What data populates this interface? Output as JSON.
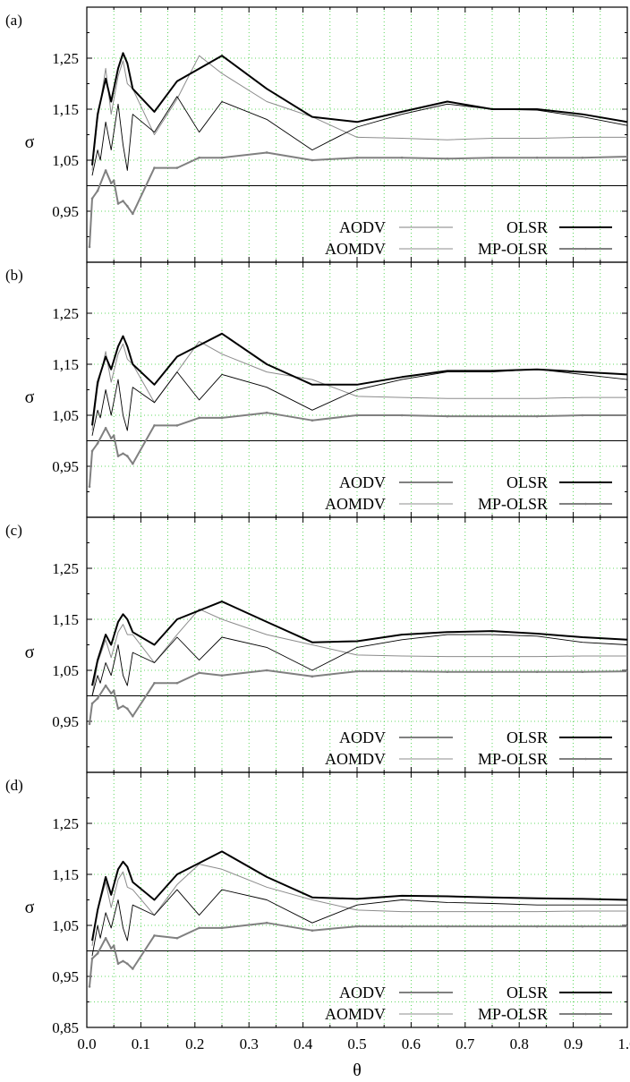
{
  "figure": {
    "ylabel": "σ",
    "xlabel": "θ",
    "x_ticks": [
      "0.0",
      "0.1",
      "0.2",
      "0.3",
      "0.4",
      "0.5",
      "0.6",
      "0.7",
      "0.8",
      "0.9",
      "1.0"
    ],
    "y_ticks": [
      "0.85",
      "0.95",
      "1.05",
      "1.15",
      "1.25"
    ],
    "legend": {
      "aodv": "AODV",
      "aomdv": "AOMDV",
      "olsr": "OLSR",
      "mpolsr": "MP-OLSR"
    },
    "colors": {
      "olsr": "#000000",
      "aodv": "#000000",
      "aomdv": "#8c8c8c",
      "mpolsr": "#808080",
      "grid": "#33cc33",
      "reference_line": "#000000"
    }
  },
  "chart_data": [
    {
      "type": "line",
      "panel": "(a)",
      "xlim": [
        0,
        1.0
      ],
      "ylim": [
        0.85,
        1.35
      ],
      "grid": true,
      "reference_y": 1.0,
      "legend_position": "bottom-right",
      "series": [
        {
          "name": "OLSR",
          "x": [
            0.01,
            0.02,
            0.035,
            0.045,
            0.058,
            0.067,
            0.075,
            0.085,
            0.125,
            0.167,
            0.25,
            0.333,
            0.417,
            0.5,
            0.583,
            0.667,
            0.75,
            0.833,
            0.917,
            1.0
          ],
          "y": [
            1.04,
            1.14,
            1.21,
            1.165,
            1.23,
            1.26,
            1.24,
            1.19,
            1.145,
            1.205,
            1.255,
            1.19,
            1.135,
            1.125,
            1.145,
            1.165,
            1.15,
            1.15,
            1.14,
            1.125
          ]
        },
        {
          "name": "AODV",
          "x": [
            0.01,
            0.02,
            0.025,
            0.035,
            0.045,
            0.058,
            0.067,
            0.075,
            0.085,
            0.125,
            0.167,
            0.208,
            0.25,
            0.333,
            0.417,
            0.5,
            0.583,
            0.667,
            0.75,
            0.833,
            0.917,
            1.0
          ],
          "y": [
            1.02,
            1.07,
            1.05,
            1.125,
            1.07,
            1.16,
            1.08,
            1.03,
            1.14,
            1.105,
            1.175,
            1.105,
            1.165,
            1.13,
            1.07,
            1.115,
            1.14,
            1.16,
            1.15,
            1.148,
            1.135,
            1.118
          ]
        },
        {
          "name": "AOMDV",
          "x": [
            0.01,
            0.02,
            0.035,
            0.045,
            0.058,
            0.067,
            0.075,
            0.085,
            0.125,
            0.167,
            0.208,
            0.25,
            0.333,
            0.417,
            0.5,
            0.583,
            0.667,
            0.75,
            0.833,
            0.917,
            1.0
          ],
          "y": [
            1.03,
            1.13,
            1.23,
            1.14,
            1.215,
            1.245,
            1.2,
            1.19,
            1.1,
            1.17,
            1.255,
            1.22,
            1.165,
            1.135,
            1.095,
            1.093,
            1.09,
            1.093,
            1.093,
            1.095,
            1.095
          ]
        },
        {
          "name": "MP-OLSR",
          "x": [
            0.005,
            0.01,
            0.02,
            0.035,
            0.045,
            0.05,
            0.058,
            0.067,
            0.075,
            0.085,
            0.125,
            0.167,
            0.208,
            0.25,
            0.333,
            0.417,
            0.5,
            0.583,
            0.667,
            0.75,
            0.833,
            0.917,
            1.0
          ],
          "y": [
            0.88,
            0.975,
            0.99,
            1.03,
            1.005,
            1.01,
            0.965,
            0.97,
            0.96,
            0.945,
            1.035,
            1.035,
            1.055,
            1.055,
            1.065,
            1.05,
            1.055,
            1.055,
            1.053,
            1.055,
            1.055,
            1.055,
            1.057
          ]
        }
      ]
    },
    {
      "type": "line",
      "panel": "(b)",
      "xlim": [
        0,
        1.0
      ],
      "ylim": [
        0.85,
        1.35
      ],
      "grid": true,
      "reference_y": 1.0,
      "legend_position": "bottom-right",
      "series": [
        {
          "name": "OLSR",
          "x": [
            0.01,
            0.02,
            0.035,
            0.045,
            0.058,
            0.067,
            0.075,
            0.085,
            0.125,
            0.167,
            0.25,
            0.333,
            0.417,
            0.5,
            0.583,
            0.667,
            0.75,
            0.833,
            0.917,
            1.0
          ],
          "y": [
            1.03,
            1.115,
            1.165,
            1.14,
            1.185,
            1.205,
            1.185,
            1.15,
            1.11,
            1.165,
            1.21,
            1.15,
            1.11,
            1.11,
            1.125,
            1.137,
            1.137,
            1.14,
            1.135,
            1.13
          ]
        },
        {
          "name": "AODV",
          "x": [
            0.01,
            0.02,
            0.025,
            0.035,
            0.045,
            0.058,
            0.067,
            0.075,
            0.085,
            0.125,
            0.167,
            0.208,
            0.25,
            0.333,
            0.417,
            0.5,
            0.583,
            0.667,
            0.75,
            0.833,
            0.917,
            1.0
          ],
          "y": [
            1.01,
            1.06,
            1.045,
            1.1,
            1.05,
            1.12,
            1.05,
            1.02,
            1.105,
            1.075,
            1.135,
            1.08,
            1.13,
            1.105,
            1.06,
            1.1,
            1.12,
            1.135,
            1.135,
            1.14,
            1.13,
            1.12
          ]
        },
        {
          "name": "AOMDV",
          "x": [
            0.01,
            0.02,
            0.035,
            0.045,
            0.058,
            0.067,
            0.075,
            0.085,
            0.125,
            0.167,
            0.208,
            0.25,
            0.333,
            0.417,
            0.5,
            0.583,
            0.667,
            0.75,
            0.833,
            0.917,
            1.0
          ],
          "y": [
            1.02,
            1.105,
            1.175,
            1.115,
            1.17,
            1.19,
            1.16,
            1.15,
            1.075,
            1.135,
            1.195,
            1.17,
            1.135,
            1.12,
            1.087,
            1.085,
            1.083,
            1.083,
            1.083,
            1.085,
            1.085
          ]
        },
        {
          "name": "MP-OLSR",
          "x": [
            0.005,
            0.01,
            0.02,
            0.035,
            0.045,
            0.05,
            0.058,
            0.067,
            0.075,
            0.085,
            0.125,
            0.167,
            0.208,
            0.25,
            0.333,
            0.417,
            0.5,
            0.583,
            0.667,
            0.75,
            0.833,
            0.917,
            1.0
          ],
          "y": [
            0.91,
            0.98,
            0.995,
            1.025,
            1.005,
            1.01,
            0.97,
            0.975,
            0.97,
            0.955,
            1.03,
            1.03,
            1.045,
            1.045,
            1.055,
            1.04,
            1.05,
            1.05,
            1.048,
            1.048,
            1.048,
            1.05,
            1.05
          ]
        }
      ]
    },
    {
      "type": "line",
      "panel": "(c)",
      "xlim": [
        0,
        1.0
      ],
      "ylim": [
        0.85,
        1.35
      ],
      "grid": true,
      "reference_y": 1.0,
      "legend_position": "bottom-right",
      "series": [
        {
          "name": "OLSR",
          "x": [
            0.01,
            0.02,
            0.035,
            0.045,
            0.058,
            0.067,
            0.075,
            0.085,
            0.125,
            0.167,
            0.25,
            0.333,
            0.417,
            0.5,
            0.583,
            0.667,
            0.75,
            0.833,
            0.917,
            1.0
          ],
          "y": [
            1.02,
            1.07,
            1.12,
            1.1,
            1.145,
            1.16,
            1.15,
            1.125,
            1.1,
            1.15,
            1.185,
            1.145,
            1.105,
            1.107,
            1.12,
            1.125,
            1.127,
            1.122,
            1.115,
            1.11
          ]
        },
        {
          "name": "AODV",
          "x": [
            0.01,
            0.02,
            0.025,
            0.035,
            0.045,
            0.058,
            0.067,
            0.075,
            0.085,
            0.125,
            0.167,
            0.208,
            0.25,
            0.333,
            0.417,
            0.5,
            0.583,
            0.667,
            0.75,
            0.833,
            0.917,
            1.0
          ],
          "y": [
            1.0,
            1.04,
            1.025,
            1.065,
            1.04,
            1.1,
            1.04,
            1.02,
            1.085,
            1.065,
            1.115,
            1.07,
            1.115,
            1.095,
            1.05,
            1.095,
            1.11,
            1.12,
            1.12,
            1.117,
            1.105,
            1.1
          ]
        },
        {
          "name": "AOMDV",
          "x": [
            0.01,
            0.02,
            0.035,
            0.045,
            0.058,
            0.067,
            0.075,
            0.085,
            0.125,
            0.167,
            0.208,
            0.25,
            0.333,
            0.417,
            0.5,
            0.583,
            0.667,
            0.75,
            0.833,
            0.917,
            1.0
          ],
          "y": [
            1.0,
            1.065,
            1.11,
            1.075,
            1.125,
            1.14,
            1.12,
            1.12,
            1.065,
            1.12,
            1.17,
            1.15,
            1.12,
            1.1,
            1.08,
            1.078,
            1.077,
            1.077,
            1.077,
            1.078,
            1.078
          ]
        },
        {
          "name": "MP-OLSR",
          "x": [
            0.005,
            0.01,
            0.02,
            0.035,
            0.045,
            0.05,
            0.058,
            0.067,
            0.075,
            0.085,
            0.125,
            0.167,
            0.208,
            0.25,
            0.333,
            0.417,
            0.5,
            0.583,
            0.667,
            0.75,
            0.833,
            0.917,
            1.0
          ],
          "y": [
            0.945,
            0.985,
            0.995,
            1.02,
            1.005,
            1.01,
            0.975,
            0.98,
            0.975,
            0.96,
            1.025,
            1.025,
            1.045,
            1.04,
            1.05,
            1.038,
            1.048,
            1.048,
            1.047,
            1.047,
            1.047,
            1.047,
            1.048
          ]
        }
      ]
    },
    {
      "type": "line",
      "panel": "(d)",
      "xlim": [
        0,
        1.0
      ],
      "ylim": [
        0.85,
        1.35
      ],
      "grid": true,
      "reference_y": 1.0,
      "legend_position": "bottom-right",
      "series": [
        {
          "name": "OLSR",
          "x": [
            0.01,
            0.02,
            0.035,
            0.045,
            0.058,
            0.067,
            0.075,
            0.085,
            0.125,
            0.167,
            0.25,
            0.333,
            0.417,
            0.5,
            0.583,
            0.667,
            0.75,
            0.833,
            0.917,
            1.0
          ],
          "y": [
            1.02,
            1.08,
            1.145,
            1.11,
            1.16,
            1.175,
            1.165,
            1.135,
            1.1,
            1.15,
            1.195,
            1.145,
            1.105,
            1.102,
            1.108,
            1.107,
            1.105,
            1.103,
            1.102,
            1.1
          ]
        },
        {
          "name": "AODV",
          "x": [
            0.01,
            0.02,
            0.025,
            0.035,
            0.045,
            0.058,
            0.067,
            0.075,
            0.085,
            0.125,
            0.167,
            0.208,
            0.25,
            0.333,
            0.417,
            0.5,
            0.583,
            0.667,
            0.75,
            0.833,
            0.917,
            1.0
          ],
          "y": [
            0.99,
            1.05,
            1.025,
            1.075,
            1.045,
            1.1,
            1.045,
            1.02,
            1.09,
            1.07,
            1.12,
            1.07,
            1.12,
            1.1,
            1.055,
            1.09,
            1.1,
            1.095,
            1.093,
            1.09,
            1.09,
            1.09
          ]
        },
        {
          "name": "AOMDV",
          "x": [
            0.01,
            0.02,
            0.035,
            0.045,
            0.058,
            0.067,
            0.075,
            0.085,
            0.125,
            0.167,
            0.208,
            0.25,
            0.333,
            0.417,
            0.5,
            0.583,
            0.667,
            0.75,
            0.833,
            0.917,
            1.0
          ],
          "y": [
            1.01,
            1.08,
            1.135,
            1.085,
            1.14,
            1.155,
            1.125,
            1.12,
            1.07,
            1.13,
            1.17,
            1.16,
            1.125,
            1.1,
            1.08,
            1.077,
            1.077,
            1.077,
            1.077,
            1.078,
            1.078
          ]
        },
        {
          "name": "MP-OLSR",
          "x": [
            0.005,
            0.01,
            0.02,
            0.035,
            0.045,
            0.05,
            0.058,
            0.067,
            0.075,
            0.085,
            0.125,
            0.167,
            0.208,
            0.25,
            0.333,
            0.417,
            0.5,
            0.583,
            0.667,
            0.75,
            0.833,
            0.917,
            1.0
          ],
          "y": [
            0.93,
            0.985,
            0.995,
            1.025,
            1.005,
            1.01,
            0.975,
            0.98,
            0.975,
            0.965,
            1.03,
            1.025,
            1.045,
            1.045,
            1.055,
            1.04,
            1.048,
            1.048,
            1.048,
            1.048,
            1.048,
            1.048,
            1.048
          ]
        }
      ]
    }
  ]
}
